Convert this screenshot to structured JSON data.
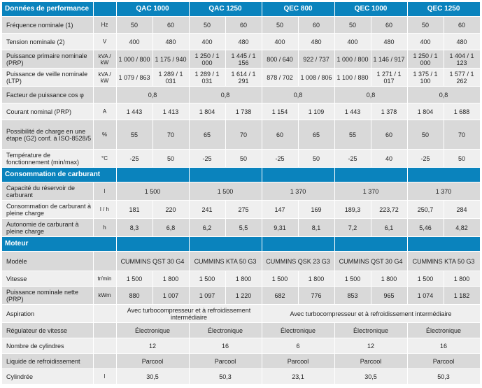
{
  "models": [
    "QAC 1000",
    "QAC 1250",
    "QEC 800",
    "QEC 1000",
    "QEC 1250"
  ],
  "sections": {
    "performance": "Données de performance",
    "fuel": "Consommation de carburant",
    "engine": "Moteur"
  },
  "perf_rows": [
    {
      "label": "Fréquence nominale (1)",
      "unit": "Hz",
      "values": [
        "50",
        "60",
        "50",
        "60",
        "50",
        "60",
        "50",
        "60",
        "50",
        "60"
      ]
    },
    {
      "label": "Tension nominale (2)",
      "unit": "V",
      "values": [
        "400",
        "480",
        "400",
        "480",
        "400",
        "480",
        "400",
        "480",
        "400",
        "480"
      ]
    },
    {
      "label": "Puissance primaire nominale (PRP)",
      "unit": "kVA / kW",
      "values": [
        "1 000 / 800",
        "1 175 / 940",
        "1 250 / 1 000",
        "1 445 / 1 156",
        "800 / 640",
        "922 / 737",
        "1 000 / 800",
        "1 146 / 917",
        "1 250 / 1 000",
        "1 404 / 1 123"
      ]
    },
    {
      "label": "Puissance de veille nominale (LTP)",
      "unit": "kVA / kW",
      "values": [
        "1 079 / 863",
        "1 289 / 1 031",
        "1 289 / 1 031",
        "1 614 / 1 291",
        "878 / 702",
        "1 008 / 806",
        "1 100 / 880",
        "1 271 / 1 017",
        "1 375 / 1 100",
        "1 577 / 1 262"
      ]
    },
    {
      "label": "Facteur de puissance cos φ",
      "unit": "",
      "values": [
        "0,8",
        "0,8",
        "0,8",
        "0,8",
        "0,8"
      ]
    },
    {
      "label": "Courant nominal (PRP)",
      "unit": "A",
      "values": [
        "1 443",
        "1 413",
        "1 804",
        "1 738",
        "1 154",
        "1 109",
        "1 443",
        "1 378",
        "1 804",
        "1 688"
      ]
    },
    {
      "label": "Possibilité de charge en une étape (G2) conf. à ISO-8528/5",
      "unit": "%",
      "values": [
        "55",
        "70",
        "65",
        "70",
        "60",
        "65",
        "55",
        "60",
        "50",
        "70"
      ]
    },
    {
      "label": "Température de fonctionnement (min/max)",
      "unit": "°C",
      "values": [
        "-25",
        "50",
        "-25",
        "50",
        "-25",
        "50",
        "-25",
        "40",
        "-25",
        "50"
      ]
    }
  ],
  "fuel_rows": [
    {
      "label": "Capacité du réservoir de carburant",
      "unit": "l",
      "values": [
        "1 500",
        "1 500",
        "1 370",
        "1 370",
        "1 370"
      ]
    },
    {
      "label": "Consommation de carburant à pleine charge",
      "unit": "l / h",
      "values": [
        "181",
        "220",
        "241",
        "275",
        "147",
        "169",
        "189,3",
        "223,72",
        "250,7",
        "284"
      ]
    },
    {
      "label": "Autonomie de carburant à pleine charge",
      "unit": "h",
      "values": [
        "8,3",
        "6,8",
        "6,2",
        "5,5",
        "9,31",
        "8,1",
        "7,2",
        "6,1",
        "5,46",
        "4,82"
      ]
    }
  ],
  "engine_rows": [
    {
      "label": "Modèle",
      "unit": "",
      "values": [
        "CUMMINS QST 30 G4",
        "CUMMINS KTA 50 G3",
        "CUMMINS QSK 23 G3",
        "CUMMINS QST 30 G4",
        "CUMMINS KTA 50 G3"
      ]
    },
    {
      "label": "Vitesse",
      "unit": "tr/min",
      "values": [
        "1 500",
        "1 800",
        "1 500",
        "1 800",
        "1 500",
        "1 800",
        "1 500",
        "1 800",
        "1 500",
        "1 800"
      ]
    },
    {
      "label": "Puissance nominale nette (PRP)",
      "unit": "kWm",
      "values": [
        "880",
        "1 007",
        "1 097",
        "1 220",
        "682",
        "776",
        "853",
        "965",
        "1 074",
        "1 182"
      ]
    },
    {
      "label": "Aspiration",
      "unit": "",
      "values": [
        "Avec turbocompresseur et à refroidissement intermédiaire",
        "Avec turbocompresseur et à refroidissement intermédiaire"
      ]
    },
    {
      "label": "Régulateur de vitesse",
      "unit": "",
      "values": [
        "Électronique",
        "Électronique",
        "Électronique",
        "Électronique",
        "Électronique"
      ]
    },
    {
      "label": "Nombre de cylindres",
      "unit": "",
      "values": [
        "12",
        "16",
        "6",
        "12",
        "16"
      ]
    },
    {
      "label": "Liquide de refroidissement",
      "unit": "",
      "values": [
        "Parcool",
        "Parcool",
        "Parcool",
        "Parcool",
        "Parcool"
      ]
    },
    {
      "label": "Cylindrée",
      "unit": "l",
      "values": [
        "30,5",
        "50,3",
        "23,1",
        "30,5",
        "50,3"
      ]
    }
  ]
}
